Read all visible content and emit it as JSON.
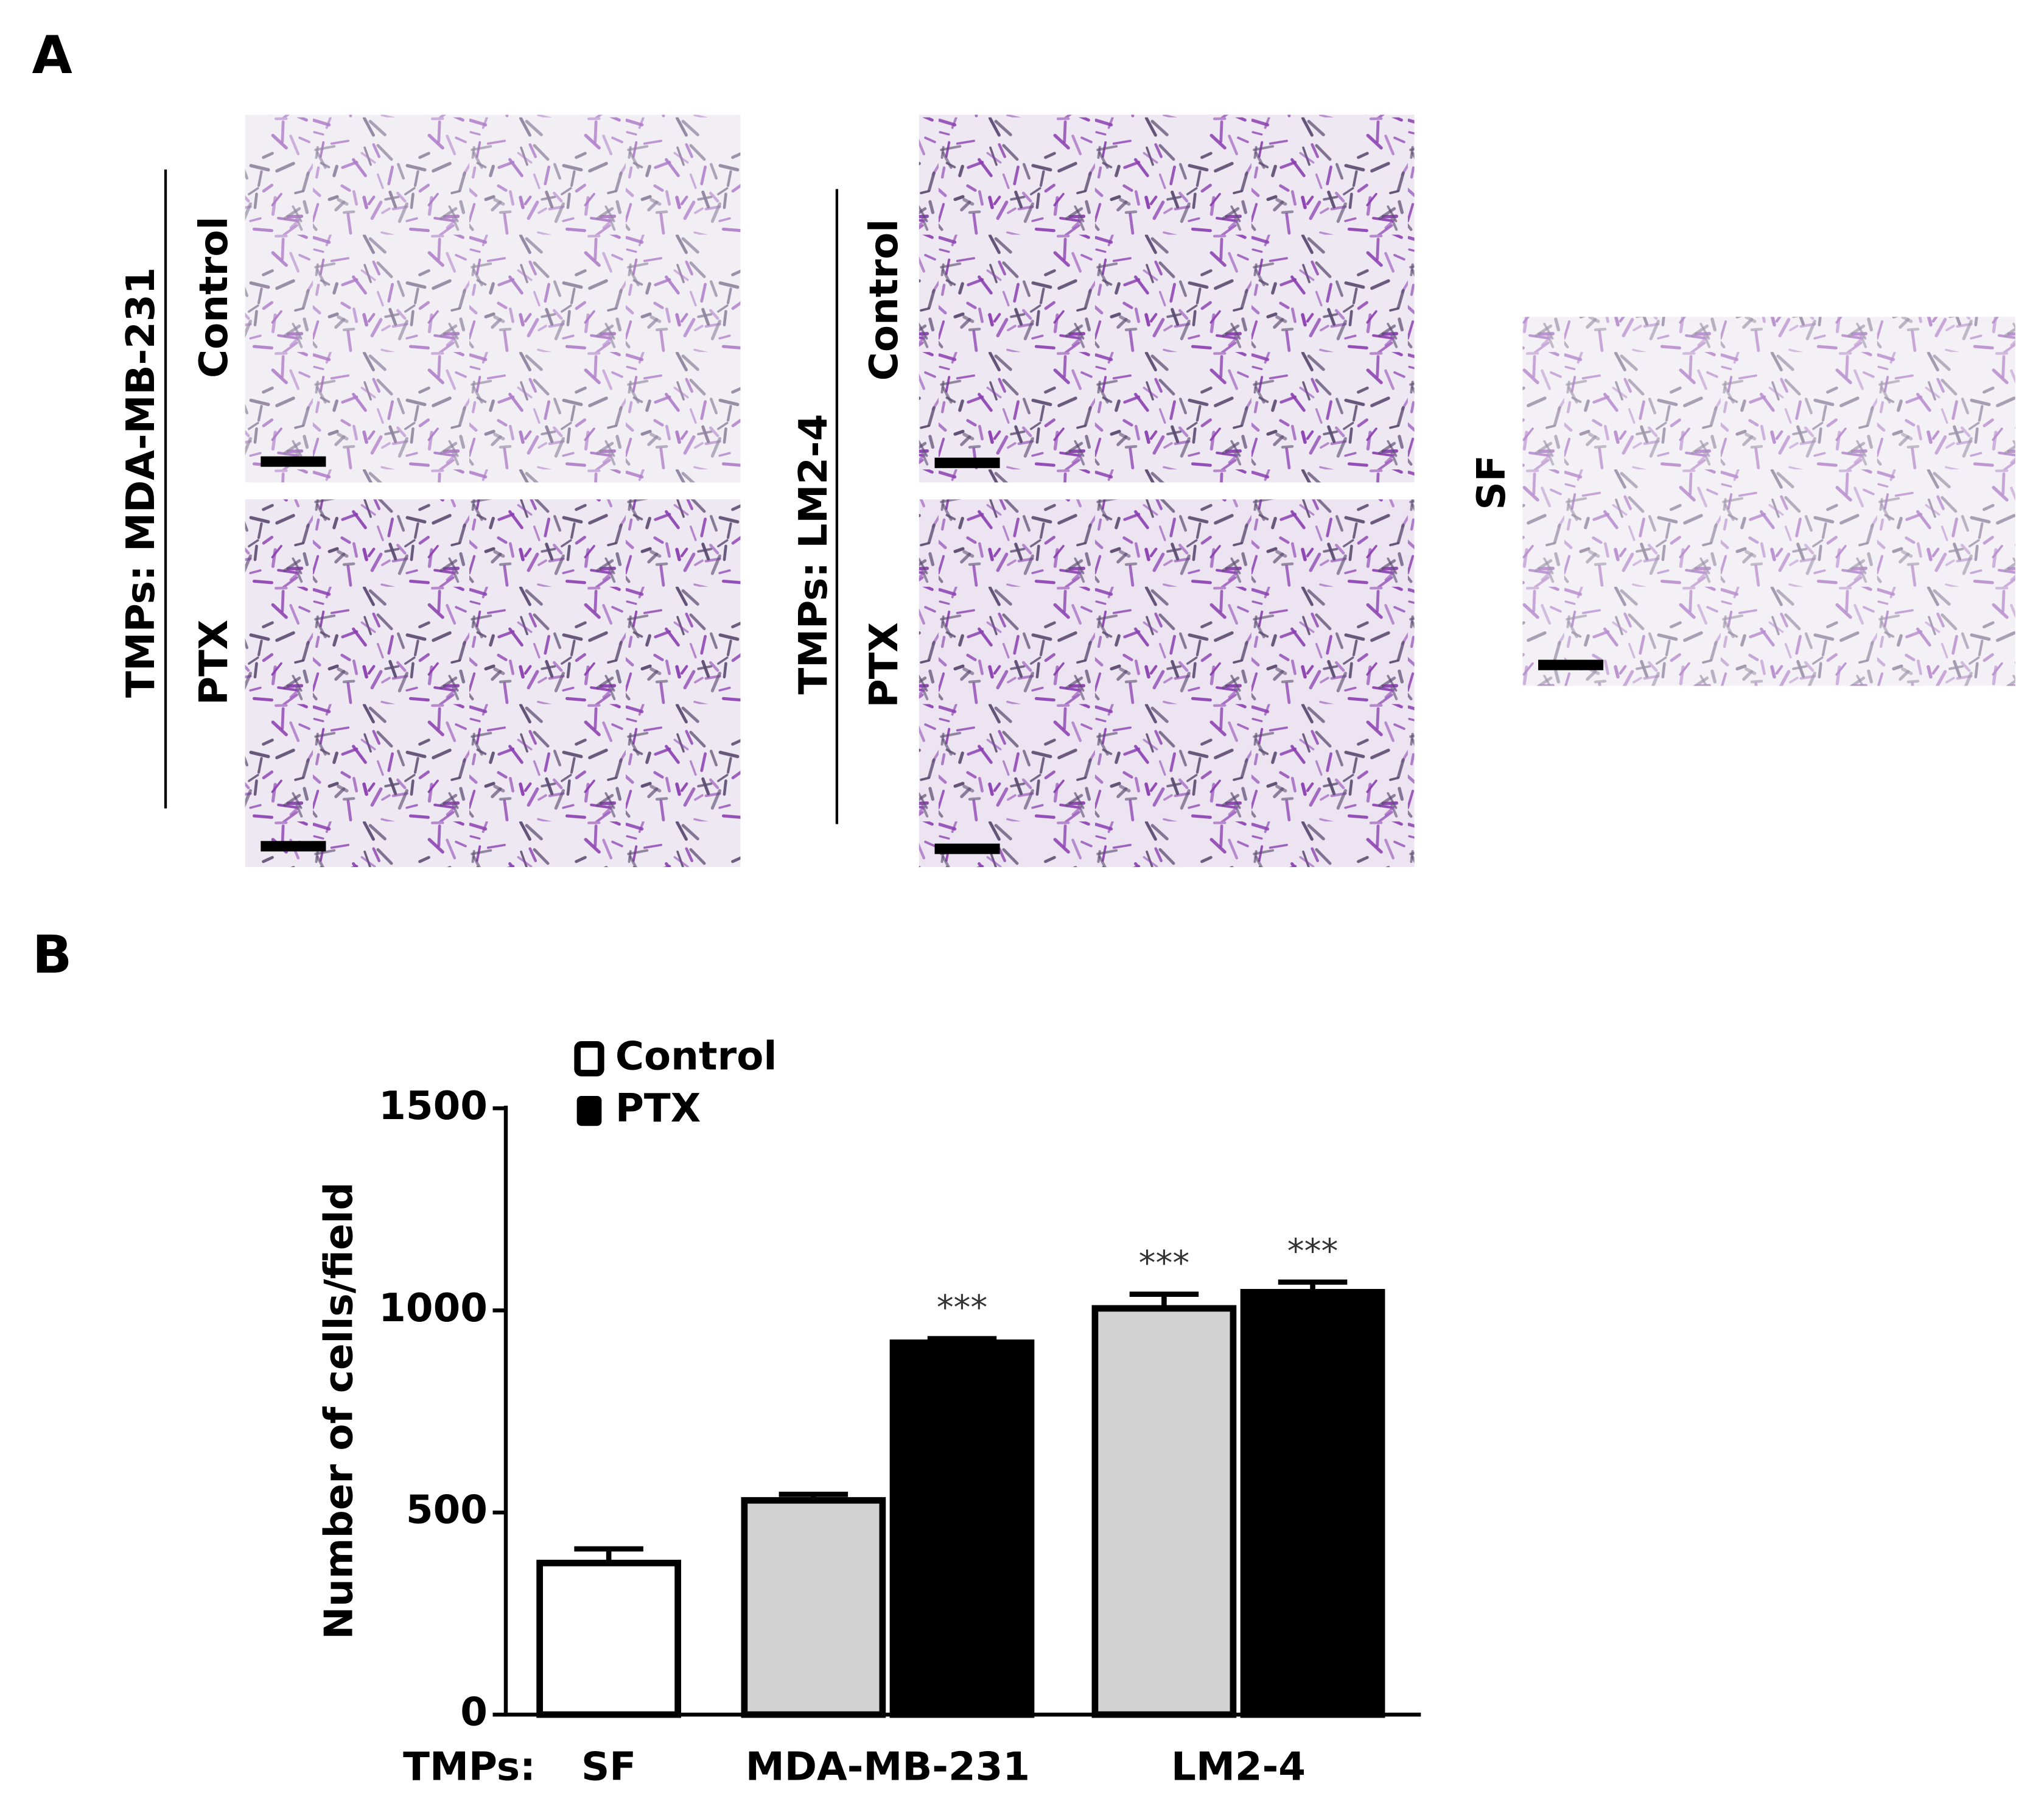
{
  "panel_labels": [
    "A",
    "B"
  ],
  "panel_a": {
    "groups": [
      {
        "label": "TMPs: MDA-MB-231",
        "rows": [
          "Control",
          "PTX"
        ]
      },
      {
        "label": "TMPs: LM2-4",
        "rows": [
          "Control",
          "PTX"
        ]
      }
    ],
    "single_label": "SF"
  },
  "chart_data": {
    "type": "bar",
    "x_label": "TMPs:",
    "y_label": "Number of cells/field",
    "categories": [
      "SF",
      "MDA-MB-231",
      "LM2-4"
    ],
    "series": [
      {
        "name": "Control",
        "color": "#d3d3d3",
        "colors": [
          "#ffffff",
          "#d3d3d3",
          "#d3d3d3"
        ],
        "values": [
          375,
          530,
          1005
        ],
        "errors": [
          35,
          15,
          35
        ],
        "significance": [
          null,
          null,
          "***"
        ]
      },
      {
        "name": "PTX",
        "color": "#000000",
        "colors": [
          null,
          "#000000",
          "#000000"
        ],
        "values": [
          null,
          920,
          1045
        ],
        "errors": [
          null,
          10,
          25
        ],
        "significance": [
          null,
          "***",
          "***"
        ]
      }
    ],
    "ylim": [
      0,
      1500
    ],
    "yticks": [
      0,
      500,
      1000,
      1500
    ],
    "grid": false
  }
}
